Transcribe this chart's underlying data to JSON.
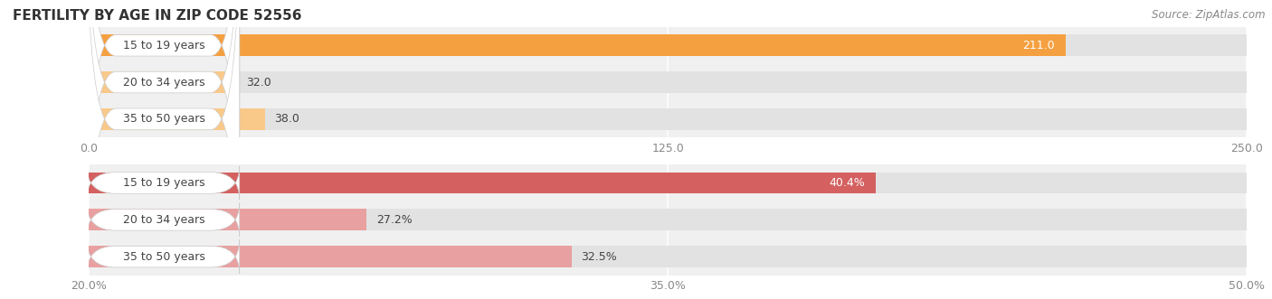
{
  "title": "FERTILITY BY AGE IN ZIP CODE 52556",
  "source": "Source: ZipAtlas.com",
  "top_chart": {
    "categories": [
      "15 to 19 years",
      "20 to 34 years",
      "35 to 50 years"
    ],
    "values": [
      211.0,
      32.0,
      38.0
    ],
    "value_labels": [
      "211.0",
      "32.0",
      "38.0"
    ],
    "xlim": [
      0.0,
      250.0
    ],
    "xticks": [
      0.0,
      125.0,
      250.0
    ],
    "xtick_labels": [
      "0.0",
      "125.0",
      "250.0"
    ],
    "bar_color_strong": "#F5A040",
    "bar_color_light": "#F9C98A",
    "bg_color": "#F0F0F0",
    "bar_bg_color": "#E2E2E2",
    "label_bg_color": "#FFFFFF"
  },
  "bottom_chart": {
    "categories": [
      "15 to 19 years",
      "20 to 34 years",
      "35 to 50 years"
    ],
    "values": [
      40.4,
      27.2,
      32.5
    ],
    "value_labels": [
      "40.4%",
      "27.2%",
      "32.5%"
    ],
    "xlim": [
      20.0,
      50.0
    ],
    "xticks": [
      20.0,
      35.0,
      50.0
    ],
    "xtick_labels": [
      "20.0%",
      "35.0%",
      "50.0%"
    ],
    "bar_color_strong": "#D46060",
    "bar_color_light": "#E8A0A0",
    "bg_color": "#F0F0F0",
    "bar_bg_color": "#E2E2E2",
    "label_bg_color": "#FFFFFF"
  },
  "label_fontsize": 9,
  "title_fontsize": 11,
  "source_fontsize": 8.5,
  "value_fontsize": 9,
  "bar_height": 0.58,
  "figure_bg": "#FFFFFF",
  "title_color": "#333333",
  "label_color": "#444444",
  "tick_color": "#888888",
  "source_color": "#888888"
}
